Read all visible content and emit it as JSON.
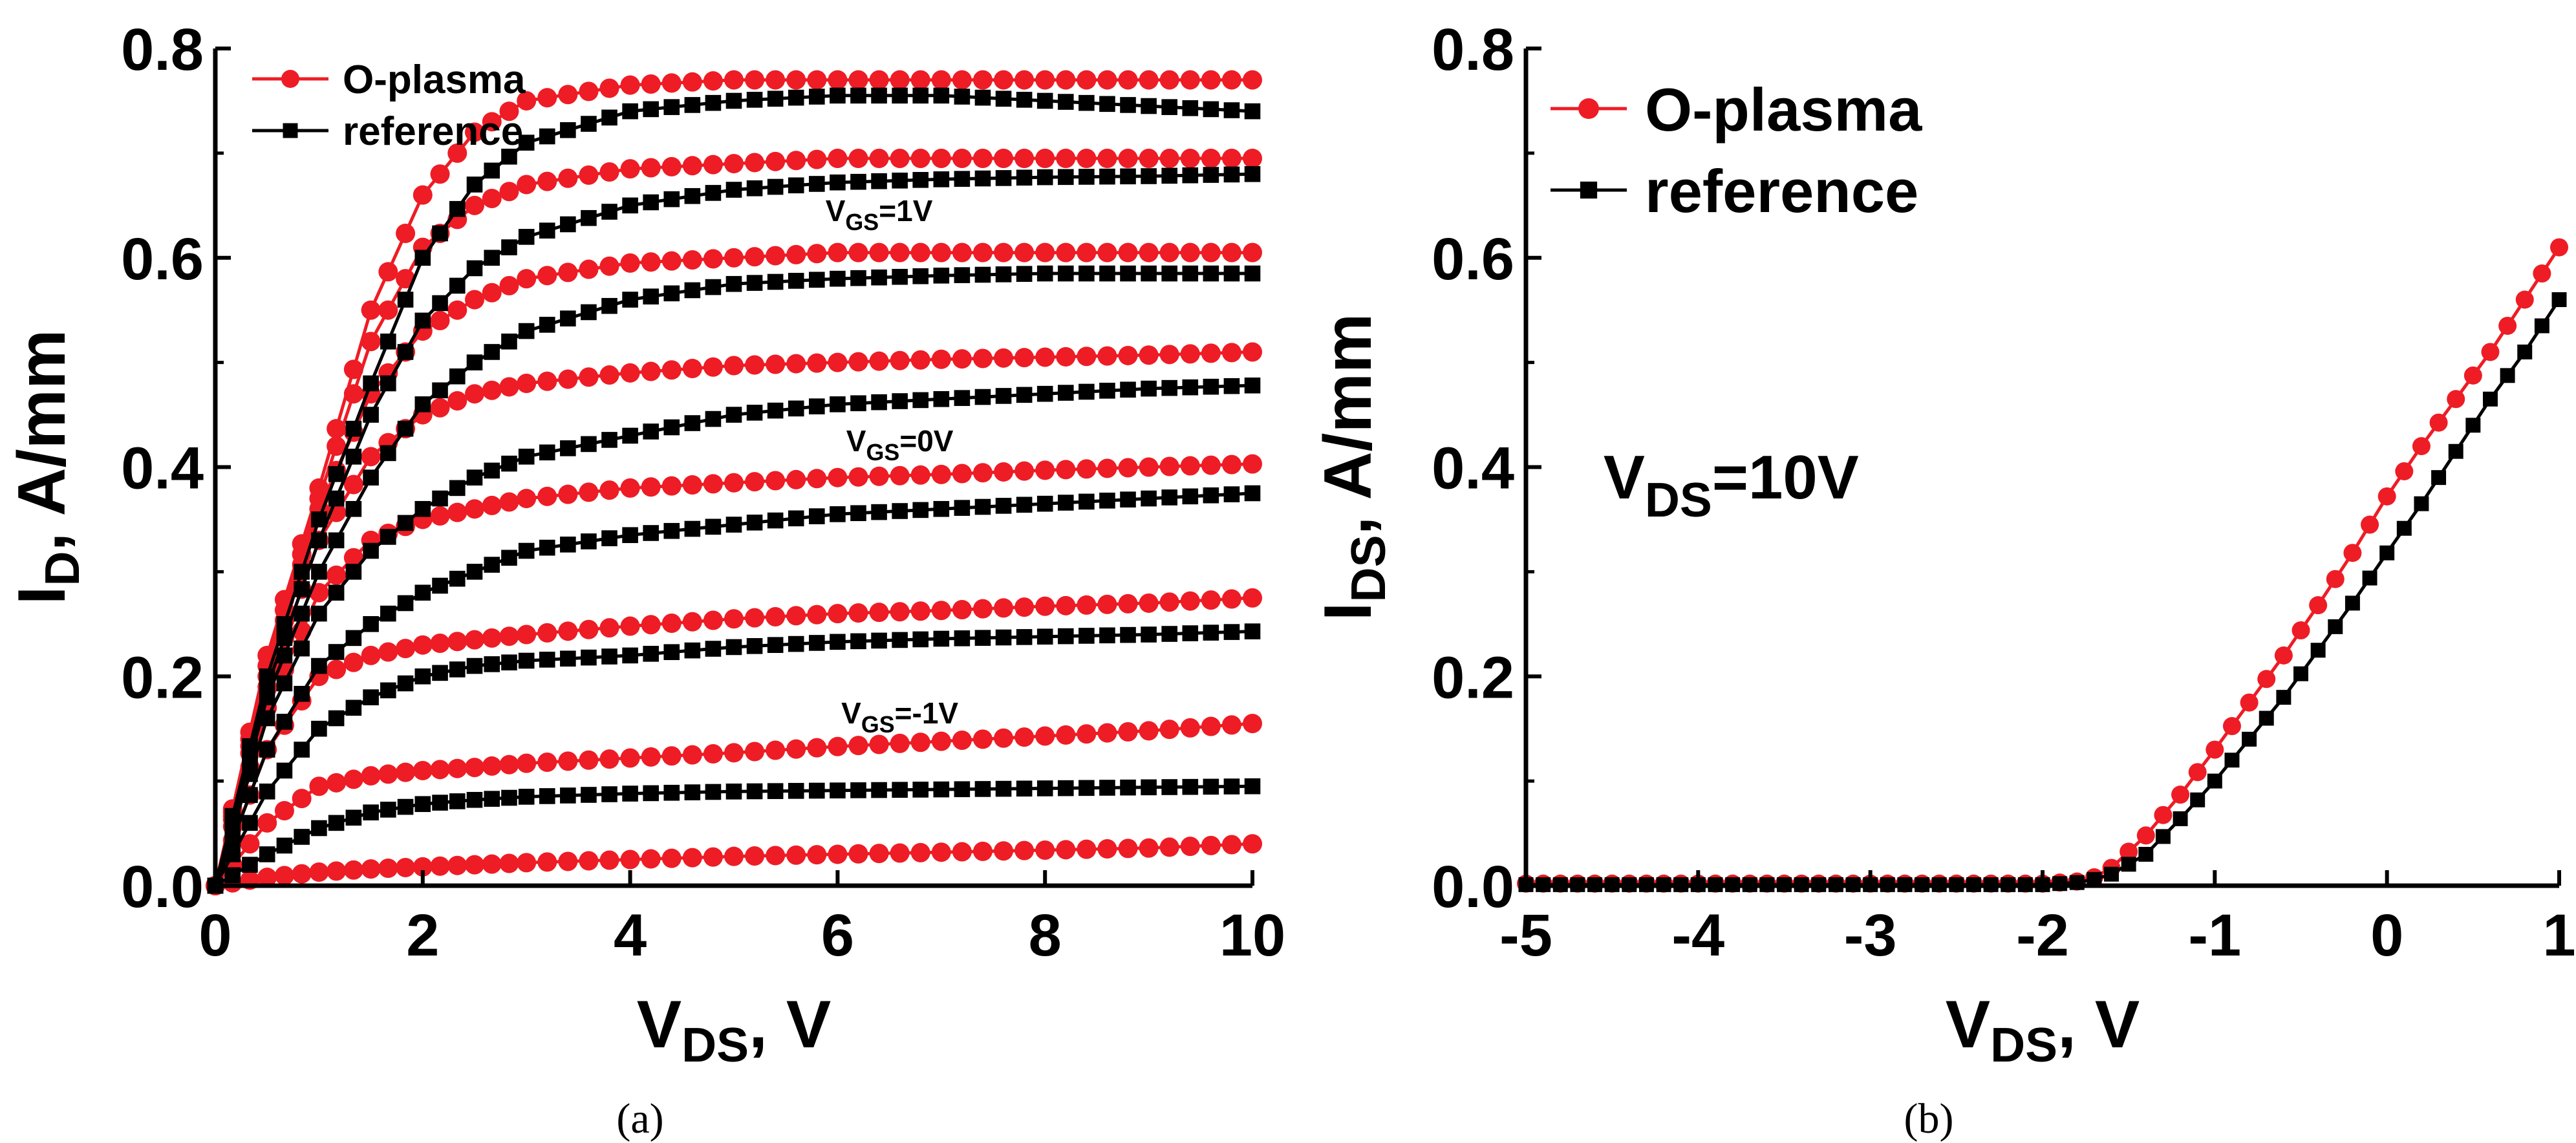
{
  "colors": {
    "oplasma": "#ee1c25",
    "reference": "#000000",
    "axis": "#000000"
  },
  "panels": {
    "a": {
      "caption": "(a)",
      "legend": [
        {
          "series": "O-plasma",
          "label": "O-plasma"
        },
        {
          "series": "reference",
          "label": "reference"
        }
      ],
      "annotations": [
        {
          "main": "V",
          "sub": "GS",
          "rest": "=1V",
          "x": 6.4,
          "y": 0.635
        },
        {
          "main": "V",
          "sub": "GS",
          "rest": "=0V",
          "x": 6.6,
          "y": 0.415
        },
        {
          "main": "V",
          "sub": "GS",
          "rest": "=-1V",
          "x": 6.6,
          "y": 0.155
        }
      ]
    },
    "b": {
      "caption": "(b)",
      "legend": [
        {
          "series": "O-plasma",
          "label": "O-plasma"
        },
        {
          "series": "reference",
          "label": "reference"
        }
      ],
      "annotations": [
        {
          "main": "V",
          "sub": "DS",
          "rest": "=10V",
          "x": -4.55,
          "y": 0.37
        }
      ]
    }
  },
  "chart_data": [
    {
      "type": "line",
      "panel": "a",
      "title": "",
      "xlabel": {
        "main": "V",
        "sub": "DS",
        "rest": ", V"
      },
      "ylabel": {
        "main": "I",
        "sub": "D",
        "rest": ", A/mm"
      },
      "xlim": [
        0,
        10
      ],
      "ylim": [
        0,
        0.8
      ],
      "xticks": [
        0,
        2,
        4,
        6,
        8,
        10
      ],
      "yticks": [
        0.0,
        0.2,
        0.4,
        0.6,
        0.8
      ],
      "xtick_labels": [
        "0",
        "2",
        "4",
        "6",
        "8",
        "10"
      ],
      "ytick_labels": [
        "0.0",
        "0.2",
        "0.4",
        "0.6",
        "0.8"
      ],
      "x": [
        0,
        0.5,
        1,
        1.5,
        2,
        2.5,
        3,
        4,
        5,
        6,
        7,
        8,
        9,
        10
      ],
      "series": [
        {
          "name": "O-plasma",
          "values": [
            0,
            0.22,
            0.38,
            0.55,
            0.66,
            0.72,
            0.75,
            0.765,
            0.77,
            0.77,
            0.77,
            0.77,
            0.77,
            0.77
          ]
        },
        {
          "name": "O-plasma",
          "values": [
            0,
            0.21,
            0.37,
            0.52,
            0.61,
            0.65,
            0.67,
            0.685,
            0.69,
            0.695,
            0.695,
            0.695,
            0.695,
            0.695
          ]
        },
        {
          "name": "O-plasma",
          "values": [
            0,
            0.2,
            0.36,
            0.47,
            0.53,
            0.56,
            0.58,
            0.595,
            0.6,
            0.605,
            0.605,
            0.605,
            0.605,
            0.605
          ]
        },
        {
          "name": "O-plasma",
          "values": [
            0,
            0.19,
            0.33,
            0.41,
            0.45,
            0.47,
            0.48,
            0.49,
            0.497,
            0.5,
            0.503,
            0.505,
            0.507,
            0.51
          ]
        },
        {
          "name": "O-plasma",
          "values": [
            0,
            0.17,
            0.28,
            0.33,
            0.35,
            0.36,
            0.37,
            0.38,
            0.385,
            0.39,
            0.393,
            0.397,
            0.4,
            0.403
          ]
        },
        {
          "name": "O-plasma",
          "values": [
            0,
            0.13,
            0.2,
            0.22,
            0.23,
            0.235,
            0.24,
            0.248,
            0.255,
            0.26,
            0.263,
            0.267,
            0.27,
            0.275
          ]
        },
        {
          "name": "O-plasma",
          "values": [
            0,
            0.06,
            0.095,
            0.105,
            0.11,
            0.113,
            0.117,
            0.122,
            0.127,
            0.133,
            0.138,
            0.143,
            0.148,
            0.155
          ]
        },
        {
          "name": "O-plasma",
          "values": [
            0,
            0.008,
            0.013,
            0.016,
            0.018,
            0.02,
            0.022,
            0.025,
            0.028,
            0.03,
            0.032,
            0.034,
            0.036,
            0.04
          ]
        },
        {
          "name": "reference",
          "values": [
            0,
            0.2,
            0.35,
            0.48,
            0.6,
            0.67,
            0.71,
            0.74,
            0.75,
            0.755,
            0.755,
            0.75,
            0.745,
            0.74
          ]
        },
        {
          "name": "reference",
          "values": [
            0,
            0.19,
            0.33,
            0.45,
            0.54,
            0.59,
            0.62,
            0.65,
            0.665,
            0.672,
            0.675,
            0.677,
            0.678,
            0.68
          ]
        },
        {
          "name": "reference",
          "values": [
            0,
            0.18,
            0.3,
            0.39,
            0.46,
            0.5,
            0.53,
            0.56,
            0.575,
            0.58,
            0.583,
            0.585,
            0.585,
            0.585
          ]
        },
        {
          "name": "reference",
          "values": [
            0,
            0.16,
            0.26,
            0.32,
            0.36,
            0.39,
            0.41,
            0.43,
            0.45,
            0.46,
            0.465,
            0.47,
            0.475,
            0.478
          ]
        },
        {
          "name": "reference",
          "values": [
            0,
            0.13,
            0.21,
            0.25,
            0.28,
            0.3,
            0.32,
            0.335,
            0.345,
            0.355,
            0.36,
            0.365,
            0.37,
            0.375
          ]
        },
        {
          "name": "reference",
          "values": [
            0,
            0.09,
            0.15,
            0.18,
            0.2,
            0.21,
            0.215,
            0.22,
            0.228,
            0.233,
            0.236,
            0.238,
            0.24,
            0.243
          ]
        },
        {
          "name": "reference",
          "values": [
            0,
            0.03,
            0.055,
            0.07,
            0.078,
            0.082,
            0.085,
            0.088,
            0.09,
            0.091,
            0.092,
            0.093,
            0.094,
            0.095
          ]
        }
      ]
    },
    {
      "type": "line",
      "panel": "b",
      "title": "",
      "xlabel": {
        "main": "V",
        "sub": "DS",
        "rest": ", V"
      },
      "ylabel": {
        "main": "I",
        "sub": "DS",
        "rest": ", A/mm"
      },
      "xlim": [
        -5,
        1
      ],
      "ylim": [
        0,
        0.8
      ],
      "xticks": [
        -5,
        -4,
        -3,
        -2,
        -1,
        0,
        1
      ],
      "yticks": [
        0.0,
        0.2,
        0.4,
        0.6,
        0.8
      ],
      "xtick_labels": [
        "-5",
        "-4",
        "-3",
        "-2",
        "-1",
        "0",
        "1"
      ],
      "ytick_labels": [
        "0.0",
        "0.2",
        "0.4",
        "0.6",
        "0.8"
      ],
      "series": [
        {
          "name": "O-plasma",
          "x": [
            -5,
            -2.0,
            -1.9,
            -1.8,
            -1.7,
            -1.6,
            -1.4,
            -1.2,
            -1.0,
            -0.8,
            -0.6,
            -0.4,
            -0.2,
            0.0,
            0.2,
            0.4,
            0.6,
            0.8,
            1.0
          ],
          "values": [
            0.002,
            0.002,
            0.003,
            0.004,
            0.008,
            0.017,
            0.048,
            0.087,
            0.13,
            0.175,
            0.22,
            0.268,
            0.318,
            0.372,
            0.42,
            0.465,
            0.51,
            0.56,
            0.61
          ]
        },
        {
          "name": "reference",
          "x": [
            -5,
            -2.0,
            -1.9,
            -1.8,
            -1.7,
            -1.6,
            -1.4,
            -1.2,
            -1.0,
            -0.8,
            -0.6,
            -0.4,
            -0.2,
            0.0,
            0.2,
            0.4,
            0.6,
            0.8,
            1.0
          ],
          "values": [
            0.001,
            0.001,
            0.002,
            0.003,
            0.006,
            0.011,
            0.03,
            0.064,
            0.1,
            0.14,
            0.18,
            0.225,
            0.27,
            0.318,
            0.365,
            0.415,
            0.465,
            0.51,
            0.56
          ]
        }
      ]
    }
  ]
}
